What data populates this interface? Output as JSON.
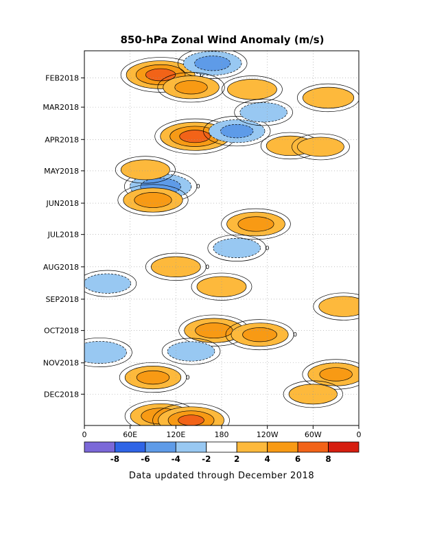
{
  "chart_data": {
    "type": "heatmap",
    "title": "850-hPa Zonal Wind Anomaly (m/s)",
    "x_tick_labels": [
      "0",
      "60E",
      "120E",
      "180",
      "120W",
      "60W",
      "0"
    ],
    "x_ticks_deg": [
      0,
      60,
      120,
      180,
      240,
      300,
      360
    ],
    "xlim": [
      0,
      360
    ],
    "y_tick_labels": [
      "FEB2018",
      "MAR2018",
      "APR2018",
      "MAY2018",
      "JUN2018",
      "JUL2018",
      "AUG2018",
      "SEP2018",
      "OCT2018",
      "NOV2018",
      "DEC2018"
    ],
    "y_range": [
      "2018-01-06",
      "2018-12-31"
    ],
    "grid": true,
    "colorbar": {
      "labels": [
        "-8",
        "-6",
        "-4",
        "-2",
        "2",
        "4",
        "6",
        "8"
      ],
      "levels": [
        -8,
        -6,
        -4,
        -2,
        2,
        4,
        6,
        8
      ],
      "colors": [
        "#7b68d8",
        "#2f64e6",
        "#5e9be8",
        "#98c8f2",
        "#ffffff",
        "#fdb93c",
        "#f89a14",
        "#f26318",
        "#d61e10"
      ]
    },
    "contour_zero_label": "0",
    "anomalies": [
      {
        "lon": 100,
        "date": "2018-01-29",
        "peak": 6.5
      },
      {
        "lon": 168,
        "date": "2018-01-18",
        "peak": -4.6
      },
      {
        "lon": 140,
        "date": "2018-02-10",
        "peak": 4.2
      },
      {
        "lon": 220,
        "date": "2018-02-12",
        "peak": 3.0
      },
      {
        "lon": 320,
        "date": "2018-02-20",
        "peak": 3.3
      },
      {
        "lon": 145,
        "date": "2018-03-29",
        "peak": 6.6
      },
      {
        "lon": 200,
        "date": "2018-03-24",
        "peak": -4.2
      },
      {
        "lon": 235,
        "date": "2018-03-06",
        "peak": -2.6
      },
      {
        "lon": 100,
        "date": "2018-05-16",
        "peak": -5.2
      },
      {
        "lon": 80,
        "date": "2018-04-30",
        "peak": 2.9
      },
      {
        "lon": 90,
        "date": "2018-05-29",
        "peak": 4.8
      },
      {
        "lon": 225,
        "date": "2018-06-21",
        "peak": 4.6
      },
      {
        "lon": 200,
        "date": "2018-07-14",
        "peak": -2.6
      },
      {
        "lon": 270,
        "date": "2018-04-07",
        "peak": 2.7
      },
      {
        "lon": 310,
        "date": "2018-04-08",
        "peak": 2.5
      },
      {
        "lon": 30,
        "date": "2018-08-17",
        "peak": -2.6
      },
      {
        "lon": 120,
        "date": "2018-08-01",
        "peak": 3.0
      },
      {
        "lon": 180,
        "date": "2018-08-20",
        "peak": 3.0
      },
      {
        "lon": 340,
        "date": "2018-09-08",
        "peak": 3.0
      },
      {
        "lon": 170,
        "date": "2018-10-01",
        "peak": 4.8
      },
      {
        "lon": 230,
        "date": "2018-10-05",
        "peak": 4.4
      },
      {
        "lon": 330,
        "date": "2018-11-12",
        "peak": 4.2
      },
      {
        "lon": 20,
        "date": "2018-10-22",
        "peak": -3.8
      },
      {
        "lon": 140,
        "date": "2018-10-21",
        "peak": -2.6
      },
      {
        "lon": 90,
        "date": "2018-11-15",
        "peak": 4.2
      },
      {
        "lon": 100,
        "date": "2018-12-22",
        "peak": 5.0
      },
      {
        "lon": 140,
        "date": "2018-12-26",
        "peak": 6.0
      },
      {
        "lon": 300,
        "date": "2018-12-01",
        "peak": 2.8
      }
    ]
  },
  "footer": "Data updated through December 2018"
}
